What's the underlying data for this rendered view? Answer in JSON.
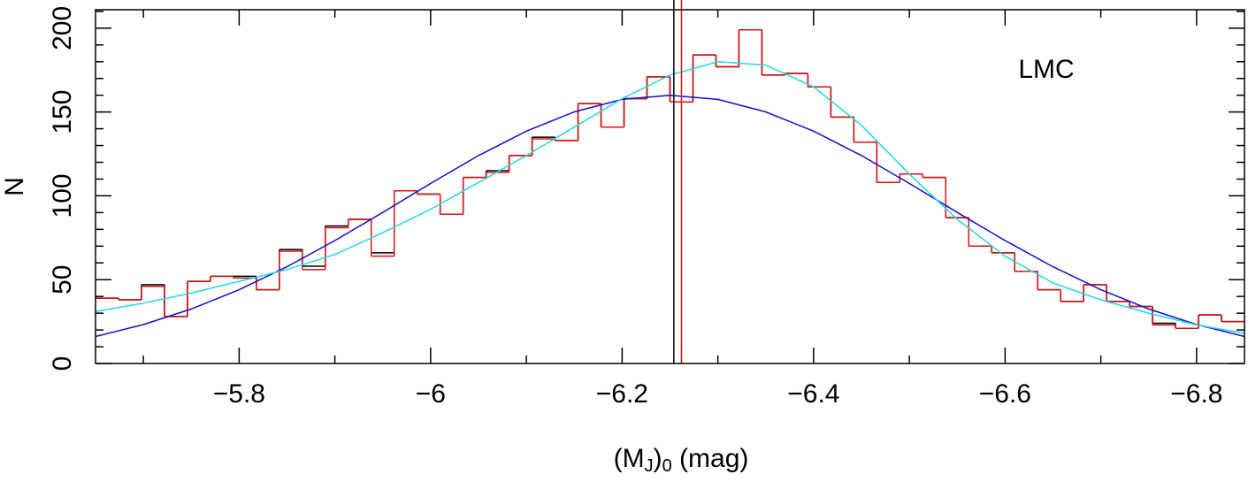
{
  "chart_data": {
    "type": "histogram",
    "x_label": [
      "(M",
      "J",
      ")",
      "0",
      " (mag)"
    ],
    "y_label": "N",
    "annotation": "LMC",
    "xlim": [
      -5.65,
      -6.85
    ],
    "ylim": [
      0,
      211
    ],
    "xticks": [
      {
        "value": -5.8,
        "label": "−5.8"
      },
      {
        "value": -6,
        "label": "−6"
      },
      {
        "value": -6.2,
        "label": "−6.2"
      },
      {
        "value": -6.4,
        "label": "−6.4"
      },
      {
        "value": -6.6,
        "label": "−6.6"
      },
      {
        "value": -6.8,
        "label": "−6.8"
      }
    ],
    "xminor": [
      -5.7,
      -5.9,
      -6.1,
      -6.3,
      -6.5,
      -6.7
    ],
    "yticks": [
      0,
      50,
      100,
      150,
      200
    ],
    "yminor": [
      10,
      20,
      30,
      40,
      60,
      70,
      80,
      90,
      110,
      120,
      130,
      140,
      160,
      170,
      180,
      190,
      210
    ],
    "bins": [
      -5.65,
      -5.674,
      -5.698,
      -5.722,
      -5.746,
      -5.77,
      -5.794,
      -5.818,
      -5.842,
      -5.866,
      -5.89,
      -5.914,
      -5.938,
      -5.962,
      -5.986,
      -6.01,
      -6.034,
      -6.058,
      -6.082,
      -6.106,
      -6.13,
      -6.154,
      -6.178,
      -6.202,
      -6.226,
      -6.25,
      -6.274,
      -6.298,
      -6.322,
      -6.346,
      -6.37,
      -6.394,
      -6.418,
      -6.442,
      -6.466,
      -6.49,
      -6.514,
      -6.538,
      -6.562,
      -6.586,
      -6.61,
      -6.634,
      -6.658,
      -6.682,
      -6.706,
      -6.73,
      -6.754,
      -6.778,
      -6.802,
      -6.826,
      -6.85
    ],
    "series": [
      {
        "color": "#000000",
        "values": [
          39,
          38,
          47,
          28,
          49,
          52,
          52,
          44,
          68,
          58,
          82,
          86,
          66,
          103,
          101,
          89,
          111,
          115,
          124,
          135,
          133,
          155,
          141,
          158,
          171,
          156,
          184,
          177,
          199,
          172,
          173,
          165,
          147,
          132,
          108,
          113,
          111,
          87,
          70,
          66,
          55,
          44,
          37,
          47,
          37,
          34,
          24,
          21,
          29,
          25
        ]
      },
      {
        "color": "#e01010",
        "values": [
          39,
          38,
          46,
          28,
          49,
          52,
          51,
          44,
          67,
          56,
          81,
          86,
          64,
          103,
          101,
          89,
          111,
          114,
          124,
          134,
          133,
          155,
          141,
          158,
          171,
          156,
          184,
          177,
          199,
          172,
          173,
          165,
          147,
          132,
          108,
          113,
          111,
          87,
          70,
          66,
          55,
          44,
          37,
          47,
          37,
          34,
          23,
          21,
          29,
          25
        ]
      }
    ],
    "curves": [
      {
        "color": "#1010d0",
        "x": [
          -5.65,
          -5.7,
          -5.75,
          -5.8,
          -5.85,
          -5.9,
          -5.95,
          -6,
          -6.05,
          -6.1,
          -6.15,
          -6.2,
          -6.25,
          -6.3,
          -6.35,
          -6.4,
          -6.45,
          -6.5,
          -6.55,
          -6.6,
          -6.65,
          -6.7,
          -6.75,
          -6.8,
          -6.85
        ],
        "values": [
          16.1,
          23.2,
          32.5,
          44,
          57.7,
          73.3,
          90.1,
          107.4,
          124,
          138.6,
          150.1,
          157.5,
          160,
          157.5,
          150.1,
          138.6,
          124,
          107.4,
          90.1,
          73.3,
          57.7,
          44,
          32.5,
          23.2,
          16.1
        ]
      },
      {
        "color": "#20d8e0",
        "x": [
          -5.65,
          -5.7,
          -5.75,
          -5.8,
          -5.85,
          -5.9,
          -5.95,
          -6,
          -6.05,
          -6.1,
          -6.15,
          -6.2,
          -6.25,
          -6.3,
          -6.35,
          -6.4,
          -6.45,
          -6.5,
          -6.55,
          -6.6,
          -6.65,
          -6.7,
          -6.75,
          -6.8,
          -6.85
        ],
        "values": [
          31,
          36,
          42,
          49,
          56,
          65,
          78,
          92,
          108,
          124,
          141,
          158,
          172,
          180,
          178,
          165,
          142,
          113,
          86,
          64,
          48,
          38,
          30,
          23,
          18
        ]
      }
    ],
    "vlines": [
      {
        "x": -6.254,
        "color": "#000000"
      },
      {
        "x": -6.262,
        "color": "#e01010"
      }
    ]
  }
}
